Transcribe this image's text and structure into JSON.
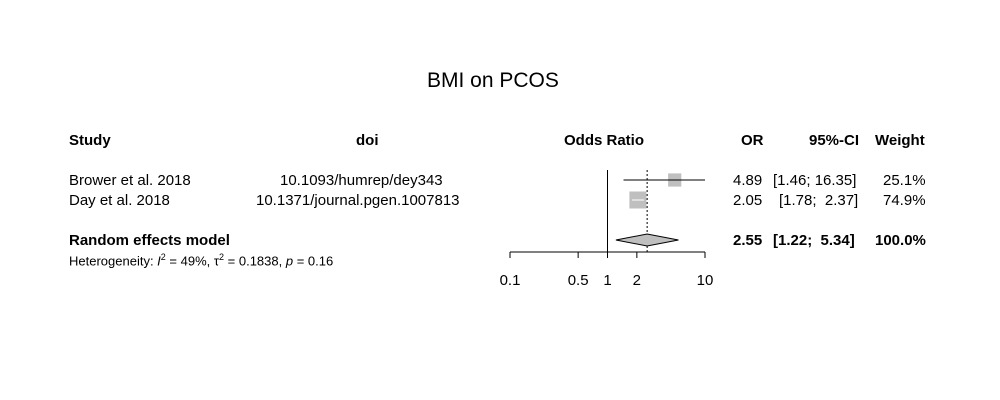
{
  "chart_data": {
    "type": "forest",
    "title": "BMI on PCOS",
    "columns": {
      "study": "Study",
      "doi": "doi",
      "plot": "Odds Ratio",
      "or": "OR",
      "ci": "95%-CI",
      "weight": "Weight"
    },
    "studies": [
      {
        "study": "Brower et al. 2018",
        "doi": "10.1093/humrep/dey343",
        "or": 4.89,
        "lower": 1.46,
        "upper": 16.35,
        "or_text": "4.89",
        "ci_text": "[1.46; 16.35]",
        "weight": 25.1,
        "weight_text": "25.1%"
      },
      {
        "study": "Day et al. 2018",
        "doi": "10.1371/journal.pgen.1007813",
        "or": 2.05,
        "lower": 1.78,
        "upper": 2.37,
        "or_text": "2.05",
        "ci_text": "[1.78;  2.37]",
        "weight": 74.9,
        "weight_text": "74.9%"
      }
    ],
    "pooled": {
      "label": "Random effects model",
      "or": 2.55,
      "lower": 1.22,
      "upper": 5.34,
      "or_text": "2.55",
      "ci_text": "[1.22;  5.34]",
      "weight_text": "100.0%"
    },
    "heterogeneity": {
      "prefix": "Heterogeneity: ",
      "i2_symbol": "I",
      "i2_value": " = 49%, ",
      "tau_symbol": "τ",
      "tau_value": " = 0.1838, ",
      "p_symbol": "p",
      "p_value": " = 0.16",
      "sup": "2"
    },
    "x_axis": {
      "scale": "log",
      "ticks": [
        0.1,
        0.5,
        1,
        2,
        10
      ],
      "tick_labels": [
        "0.1",
        "0.5",
        "1",
        "2",
        "10"
      ],
      "range": [
        0.1,
        10
      ],
      "null_value": 1
    },
    "colors": {
      "box": "#bfbfbf",
      "line": "#000000",
      "box_ci": "#ffffff"
    }
  }
}
